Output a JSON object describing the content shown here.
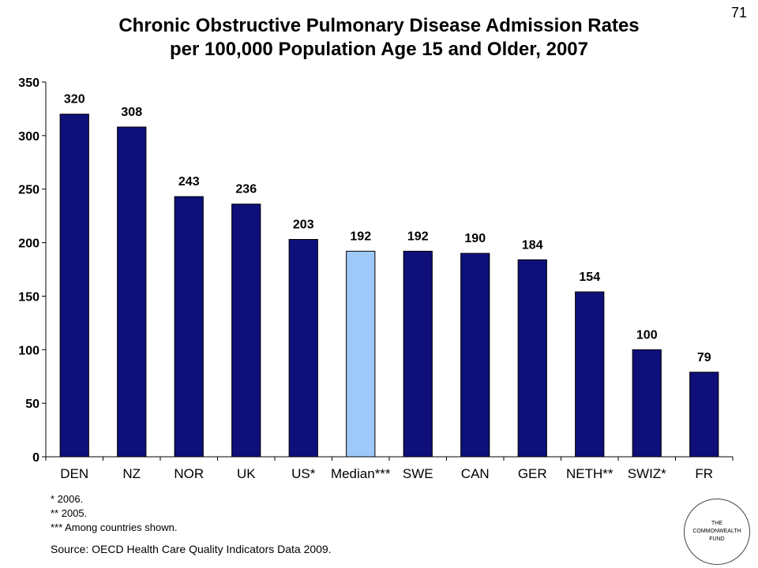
{
  "page_number": "71",
  "chart_data": {
    "type": "bar",
    "title": "Chronic Obstructive Pulmonary Disease Admission Rates",
    "subtitle": "per 100,000 Population Age 15 and Older, 2007",
    "categories": [
      "DEN",
      "NZ",
      "NOR",
      "UK",
      "US*",
      "Median***",
      "SWE",
      "CAN",
      "GER",
      "NETH**",
      "SWIZ*",
      "FR"
    ],
    "values": [
      320,
      308,
      243,
      236,
      203,
      192,
      192,
      190,
      184,
      154,
      100,
      79
    ],
    "data_labels": [
      "320",
      "308",
      "243",
      "236",
      "203",
      "192",
      "192",
      "190",
      "184",
      "154",
      "100",
      "79"
    ],
    "highlight_index": 5,
    "colors": {
      "bar": "#0f0f7a",
      "highlight": "#9ec8f8",
      "outline": "#000000"
    },
    "ylim": [
      0,
      350
    ],
    "yticks": [
      0,
      50,
      100,
      150,
      200,
      250,
      300,
      350
    ],
    "xlabel": "",
    "ylabel": "",
    "grid": false
  },
  "footnotes": [
    "* 2006.",
    "** 2005.",
    "*** Among countries shown."
  ],
  "source": "Source: OECD Health Care Quality Indicators Data 2009.",
  "logo": {
    "line1": "THE",
    "line2": "COMMONWEALTH",
    "line3": "FUND"
  }
}
